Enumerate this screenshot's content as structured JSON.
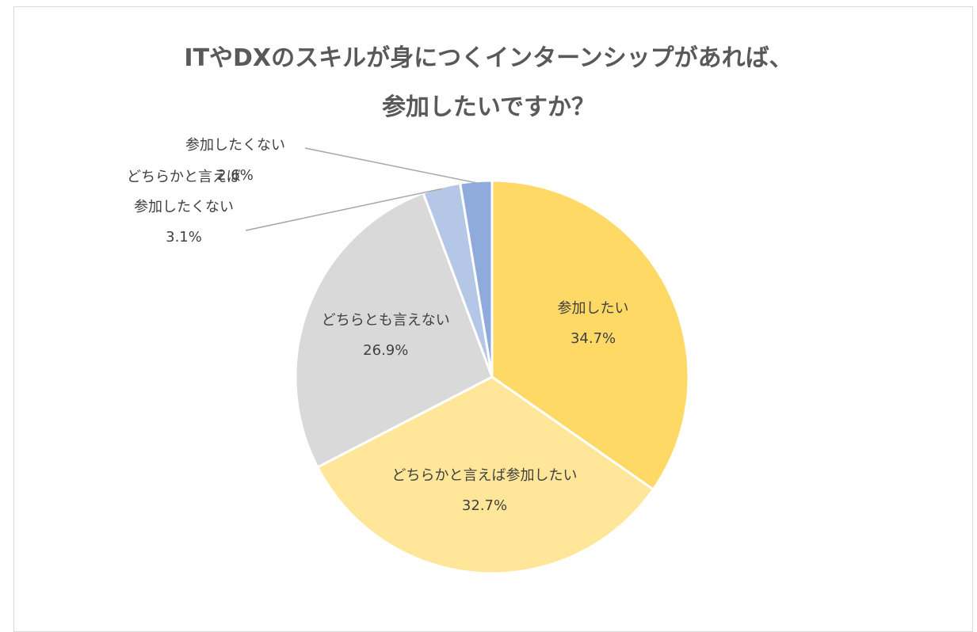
{
  "chart_data": {
    "type": "pie",
    "title": [
      "ITやDXのスキルが身につくインターンシップがあれば、",
      "参加したいですか？"
    ],
    "categories": [
      "参加したい",
      "どちらかと言えば参加したい",
      "どちらとも言えない",
      "どちらかと言えば参加したくない",
      "参加したくない"
    ],
    "values": [
      34.7,
      32.7,
      26.9,
      3.1,
      2.6
    ],
    "value_labels": [
      "34.7%",
      "32.7%",
      "26.9%",
      "3.1%",
      "2.6%"
    ],
    "colors": [
      "#ffd966",
      "#ffe699",
      "#d9d9d9",
      "#b4c7e7",
      "#8faadc"
    ]
  }
}
